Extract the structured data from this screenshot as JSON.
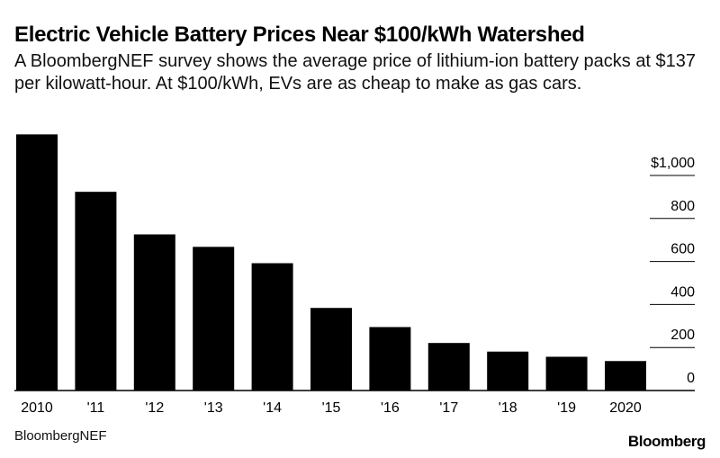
{
  "header": {
    "title": "Electric Vehicle Battery Prices Near $100/kWh Watershed",
    "subtitle": "A BloombergNEF survey shows the average price of lithium-ion battery packs at $137 per kilowatt-hour. At $100/kWh, EVs are as cheap to make as gas cars."
  },
  "footer": {
    "source": "BloombergNEF",
    "brand": "Bloomberg"
  },
  "colors": {
    "bar": "#000000",
    "gridline": "#000000",
    "background": "#ffffff"
  },
  "chart_data": {
    "type": "bar",
    "categories": [
      "2010",
      "'11",
      "'12",
      "'13",
      "'14",
      "'15",
      "'16",
      "'17",
      "'18",
      "'19",
      "2020"
    ],
    "values": [
      1191,
      924,
      726,
      668,
      592,
      384,
      295,
      221,
      181,
      157,
      137
    ],
    "ylim": [
      0,
      1000
    ],
    "yticks": [
      0,
      200,
      400,
      600,
      800,
      1000
    ],
    "ytick_labels": [
      "0",
      "200",
      "400",
      "600",
      "800",
      "$1,000"
    ],
    "yaxis_side": "right",
    "grid": true
  }
}
